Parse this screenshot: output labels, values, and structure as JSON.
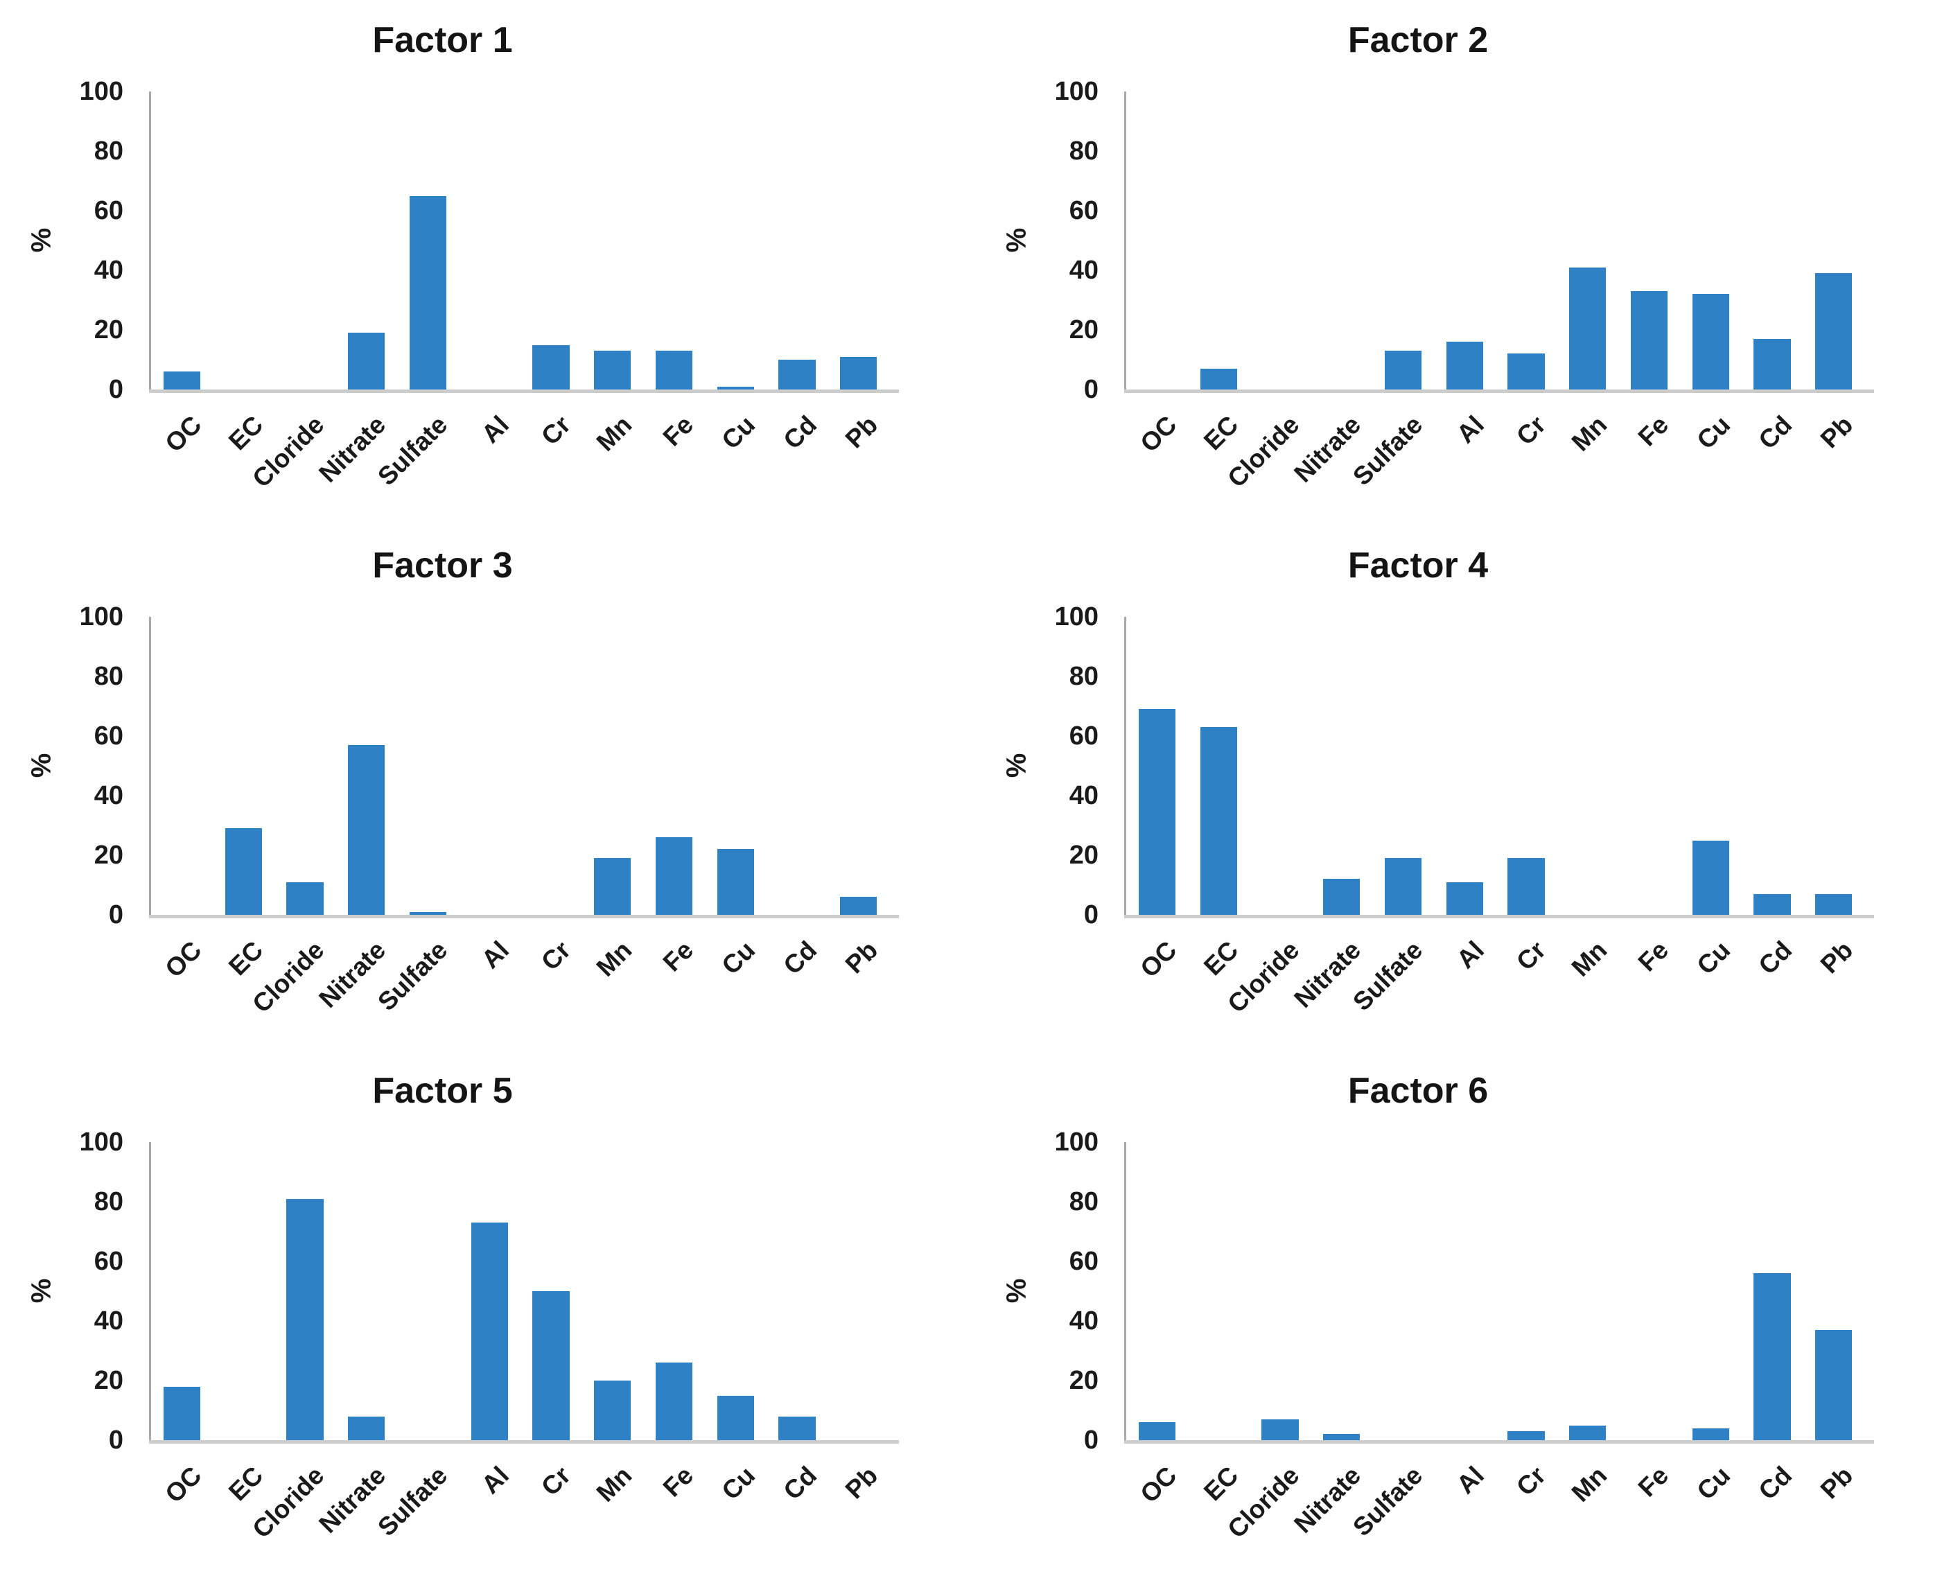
{
  "figure": {
    "kind": "small-multiples-bar-figure",
    "background": "#ffffff",
    "panel_titles": [
      "Factor 1",
      "Factor 2",
      "Factor 3",
      "Factor 4",
      "Factor 5",
      "Factor 6"
    ]
  },
  "colors": {
    "bar": "#2e81c4",
    "y_axis_line": "#a9a9a9",
    "x_axis_line": "#cccccc",
    "text": "#141414"
  },
  "chart_data": [
    {
      "type": "bar",
      "title": "Factor 1",
      "xlabel": "",
      "ylabel": "%",
      "ylim": [
        0,
        100
      ],
      "yticks": [
        0,
        20,
        40,
        60,
        80,
        100
      ],
      "grid": false,
      "legend": false,
      "bar_color": "#2e81c4",
      "categories": [
        "OC",
        "EC",
        "Cloride",
        "Nitrate",
        "Sulfate",
        "Al",
        "Cr",
        "Mn",
        "Fe",
        "Cu",
        "Cd",
        "Pb"
      ],
      "values": [
        6,
        0,
        0,
        19,
        65,
        0,
        15,
        13,
        13,
        1,
        10,
        11
      ]
    },
    {
      "type": "bar",
      "title": "Factor 2",
      "xlabel": "",
      "ylabel": "%",
      "ylim": [
        0,
        100
      ],
      "yticks": [
        0,
        20,
        40,
        60,
        80,
        100
      ],
      "grid": false,
      "legend": false,
      "bar_color": "#2e81c4",
      "categories": [
        "OC",
        "EC",
        "Cloride",
        "Nitrate",
        "Sulfate",
        "Al",
        "Cr",
        "Mn",
        "Fe",
        "Cu",
        "Cd",
        "Pb"
      ],
      "values": [
        0,
        7,
        0,
        0,
        13,
        16,
        12,
        41,
        33,
        32,
        17,
        39
      ]
    },
    {
      "type": "bar",
      "title": "Factor 3",
      "xlabel": "",
      "ylabel": "%",
      "ylim": [
        0,
        100
      ],
      "yticks": [
        0,
        20,
        40,
        60,
        80,
        100
      ],
      "grid": false,
      "legend": false,
      "bar_color": "#2e81c4",
      "categories": [
        "OC",
        "EC",
        "Cloride",
        "Nitrate",
        "Sulfate",
        "Al",
        "Cr",
        "Mn",
        "Fe",
        "Cu",
        "Cd",
        "Pb"
      ],
      "values": [
        0,
        29,
        11,
        57,
        1,
        0,
        0,
        19,
        26,
        22,
        0,
        6
      ]
    },
    {
      "type": "bar",
      "title": "Factor 4",
      "xlabel": "",
      "ylabel": "%",
      "ylim": [
        0,
        100
      ],
      "yticks": [
        0,
        20,
        40,
        60,
        80,
        100
      ],
      "grid": false,
      "legend": false,
      "bar_color": "#2e81c4",
      "categories": [
        "OC",
        "EC",
        "Cloride",
        "Nitrate",
        "Sulfate",
        "Al",
        "Cr",
        "Mn",
        "Fe",
        "Cu",
        "Cd",
        "Pb"
      ],
      "values": [
        69,
        63,
        0,
        12,
        19,
        11,
        19,
        0,
        0,
        25,
        7,
        7
      ]
    },
    {
      "type": "bar",
      "title": "Factor 5",
      "xlabel": "",
      "ylabel": "%",
      "ylim": [
        0,
        100
      ],
      "yticks": [
        0,
        20,
        40,
        60,
        80,
        100
      ],
      "grid": false,
      "legend": false,
      "bar_color": "#2e81c4",
      "categories": [
        "OC",
        "EC",
        "Cloride",
        "Nitrate",
        "Sulfate",
        "Al",
        "Cr",
        "Mn",
        "Fe",
        "Cu",
        "Cd",
        "Pb"
      ],
      "values": [
        18,
        0,
        81,
        8,
        0,
        73,
        50,
        20,
        26,
        15,
        8,
        0
      ]
    },
    {
      "type": "bar",
      "title": "Factor 6",
      "xlabel": "",
      "ylabel": "%",
      "ylim": [
        0,
        100
      ],
      "yticks": [
        0,
        20,
        40,
        60,
        80,
        100
      ],
      "grid": false,
      "legend": false,
      "bar_color": "#2e81c4",
      "categories": [
        "OC",
        "EC",
        "Cloride",
        "Nitrate",
        "Sulfate",
        "Al",
        "Cr",
        "Mn",
        "Fe",
        "Cu",
        "Cd",
        "Pb"
      ],
      "values": [
        6,
        0,
        7,
        2,
        0,
        0,
        3,
        5,
        0,
        4,
        56,
        37
      ]
    }
  ]
}
